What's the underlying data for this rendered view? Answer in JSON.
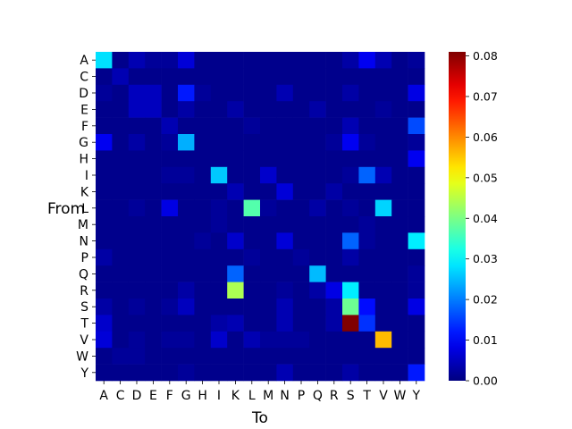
{
  "chart_data": {
    "type": "heatmap",
    "title": "",
    "xlabel": "To",
    "ylabel": "From",
    "x_categories": [
      "A",
      "C",
      "D",
      "E",
      "F",
      "G",
      "H",
      "I",
      "K",
      "L",
      "M",
      "N",
      "P",
      "Q",
      "R",
      "S",
      "T",
      "V",
      "W",
      "Y"
    ],
    "y_categories": [
      "A",
      "C",
      "D",
      "E",
      "F",
      "G",
      "H",
      "I",
      "K",
      "L",
      "M",
      "N",
      "P",
      "Q",
      "R",
      "S",
      "T",
      "V",
      "W",
      "Y"
    ],
    "values": [
      [
        0.028,
        0.001,
        0.004,
        0.002,
        0.002,
        0.007,
        0.001,
        0.001,
        0.001,
        0.001,
        0.001,
        0.001,
        0.001,
        0.001,
        0.001,
        0.003,
        0.009,
        0.004,
        0.001,
        0.002
      ],
      [
        0.001,
        0.004,
        0.001,
        0.001,
        0.001,
        0.001,
        0.001,
        0.001,
        0.001,
        0.001,
        0.001,
        0.001,
        0.001,
        0.001,
        0.001,
        0.001,
        0.001,
        0.001,
        0.001,
        0.001
      ],
      [
        0.002,
        0.001,
        0.005,
        0.005,
        0.001,
        0.012,
        0.002,
        0.001,
        0.001,
        0.001,
        0.001,
        0.004,
        0.001,
        0.001,
        0.001,
        0.003,
        0.001,
        0.001,
        0.001,
        0.008
      ],
      [
        0.001,
        0.001,
        0.005,
        0.005,
        0.001,
        0.003,
        0.001,
        0.001,
        0.003,
        0.001,
        0.001,
        0.001,
        0.001,
        0.003,
        0.001,
        0.001,
        0.001,
        0.002,
        0.001,
        0.001
      ],
      [
        0.001,
        0.001,
        0.001,
        0.001,
        0.004,
        0.001,
        0.001,
        0.001,
        0.001,
        0.002,
        0.001,
        0.001,
        0.001,
        0.001,
        0.001,
        0.004,
        0.001,
        0.001,
        0.001,
        0.016
      ],
      [
        0.009,
        0.001,
        0.003,
        0.001,
        0.002,
        0.024,
        0.001,
        0.001,
        0.001,
        0.001,
        0.001,
        0.001,
        0.001,
        0.001,
        0.002,
        0.009,
        0.002,
        0.001,
        0.001,
        0.002
      ],
      [
        0.001,
        0.001,
        0.001,
        0.001,
        0.001,
        0.001,
        0.001,
        0.001,
        0.001,
        0.001,
        0.001,
        0.001,
        0.001,
        0.001,
        0.001,
        0.001,
        0.001,
        0.001,
        0.001,
        0.009
      ],
      [
        0.001,
        0.001,
        0.001,
        0.001,
        0.002,
        0.002,
        0.001,
        0.026,
        0.001,
        0.001,
        0.006,
        0.001,
        0.001,
        0.001,
        0.001,
        0.002,
        0.018,
        0.004,
        0.001,
        0.001
      ],
      [
        0.001,
        0.001,
        0.001,
        0.001,
        0.001,
        0.001,
        0.001,
        0.001,
        0.004,
        0.001,
        0.001,
        0.007,
        0.001,
        0.001,
        0.003,
        0.001,
        0.001,
        0.001,
        0.001,
        0.001
      ],
      [
        0.001,
        0.001,
        0.002,
        0.001,
        0.008,
        0.001,
        0.001,
        0.002,
        0.001,
        0.037,
        0.002,
        0.001,
        0.001,
        0.003,
        0.001,
        0.002,
        0.001,
        0.027,
        0.001,
        0.001
      ],
      [
        0.001,
        0.001,
        0.001,
        0.001,
        0.001,
        0.001,
        0.001,
        0.002,
        0.001,
        0.001,
        0.001,
        0.001,
        0.001,
        0.001,
        0.001,
        0.001,
        0.002,
        0.001,
        0.001,
        0.001
      ],
      [
        0.001,
        0.001,
        0.001,
        0.001,
        0.001,
        0.001,
        0.002,
        0.001,
        0.006,
        0.001,
        0.001,
        0.007,
        0.001,
        0.001,
        0.001,
        0.018,
        0.002,
        0.001,
        0.001,
        0.029
      ],
      [
        0.003,
        0.001,
        0.001,
        0.001,
        0.001,
        0.001,
        0.001,
        0.001,
        0.001,
        0.002,
        0.001,
        0.001,
        0.002,
        0.001,
        0.001,
        0.003,
        0.001,
        0.001,
        0.001,
        0.001
      ],
      [
        0.001,
        0.001,
        0.001,
        0.001,
        0.001,
        0.001,
        0.001,
        0.001,
        0.018,
        0.001,
        0.001,
        0.001,
        0.001,
        0.025,
        0.001,
        0.001,
        0.001,
        0.001,
        0.001,
        0.002
      ],
      [
        0.001,
        0.001,
        0.001,
        0.001,
        0.001,
        0.003,
        0.001,
        0.001,
        0.044,
        0.001,
        0.001,
        0.002,
        0.001,
        0.003,
        0.008,
        0.029,
        0.001,
        0.001,
        0.001,
        0.002
      ],
      [
        0.003,
        0.001,
        0.002,
        0.001,
        0.002,
        0.005,
        0.001,
        0.001,
        0.001,
        0.001,
        0.001,
        0.004,
        0.001,
        0.001,
        0.003,
        0.039,
        0.011,
        0.001,
        0.001,
        0.008
      ],
      [
        0.006,
        0.001,
        0.001,
        0.001,
        0.001,
        0.001,
        0.001,
        0.003,
        0.004,
        0.001,
        0.001,
        0.004,
        0.001,
        0.001,
        0.003,
        0.081,
        0.014,
        0.001,
        0.001,
        0.001
      ],
      [
        0.007,
        0.001,
        0.002,
        0.001,
        0.002,
        0.002,
        0.001,
        0.006,
        0.001,
        0.004,
        0.002,
        0.002,
        0.002,
        0.001,
        0.001,
        0.001,
        0.001,
        0.056,
        0.001,
        0.001
      ],
      [
        0.001,
        0.002,
        0.002,
        0.001,
        0.001,
        0.001,
        0.001,
        0.001,
        0.001,
        0.001,
        0.001,
        0.001,
        0.001,
        0.001,
        0.001,
        0.001,
        0.001,
        0.001,
        0.001,
        0.001
      ],
      [
        0.001,
        0.001,
        0.001,
        0.001,
        0.001,
        0.002,
        0.001,
        0.001,
        0.001,
        0.001,
        0.001,
        0.004,
        0.001,
        0.001,
        0.001,
        0.003,
        0.001,
        0.001,
        0.001,
        0.012
      ]
    ],
    "colorbar": {
      "colormap": "jet",
      "vmin": 0.0,
      "vmax": 0.081,
      "tick_values": [
        0.0,
        0.01,
        0.02,
        0.03,
        0.04,
        0.05,
        0.06,
        0.07,
        0.08
      ],
      "tick_labels": [
        "0.00",
        "0.01",
        "0.02",
        "0.03",
        "0.04",
        "0.05",
        "0.06",
        "0.07",
        "0.08"
      ]
    },
    "grid": false,
    "legend": "colorbar-right"
  }
}
